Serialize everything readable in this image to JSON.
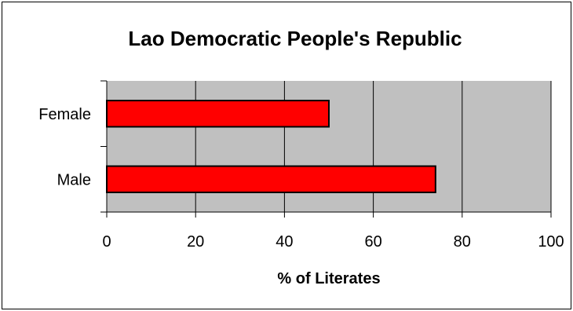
{
  "chart_data": {
    "type": "bar",
    "orientation": "horizontal",
    "title": "Lao Democratic People's Republic",
    "xlabel": "% of Literates",
    "ylabel": "",
    "categories": [
      "Female",
      "Male"
    ],
    "series": [
      {
        "values": [
          50,
          74
        ]
      }
    ],
    "xlim": [
      0,
      100
    ],
    "xticks": [
      0,
      20,
      40,
      60,
      80,
      100
    ],
    "grid": true,
    "legend": "none",
    "colors": {
      "bar_fill": "#ff0000",
      "bar_stroke": "#000000",
      "plot_background": "#c0c0c0",
      "gridline": "#000000"
    }
  }
}
